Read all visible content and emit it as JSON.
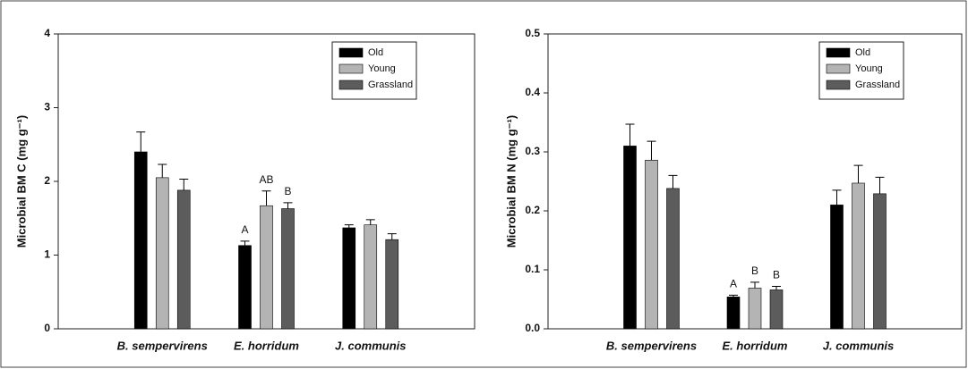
{
  "chart_data": [
    {
      "type": "bar",
      "ylabel": "Microbial BM C (mg g⁻¹)",
      "categories": [
        "B. sempervirens",
        "E. horridum",
        "J. communis"
      ],
      "series": [
        {
          "name": "Old",
          "color": "#000000",
          "values": [
            2.4,
            1.13,
            1.37
          ],
          "errors": [
            0.27,
            0.06,
            0.04
          ],
          "letters": [
            null,
            "A",
            null
          ]
        },
        {
          "name": "Young",
          "color": "#b4b4b4",
          "values": [
            2.05,
            1.67,
            1.41
          ],
          "errors": [
            0.18,
            0.2,
            0.07
          ],
          "letters": [
            null,
            "AB",
            null
          ]
        },
        {
          "name": "Grassland",
          "color": "#5c5c5c",
          "values": [
            1.88,
            1.63,
            1.21
          ],
          "errors": [
            0.15,
            0.08,
            0.08
          ],
          "letters": [
            null,
            "B",
            null
          ]
        }
      ],
      "ylim": [
        0,
        4
      ],
      "yticks": [
        0,
        1,
        2,
        3,
        4
      ],
      "legend": "upper right"
    },
    {
      "type": "bar",
      "ylabel": "Microbial BM N (mg g⁻¹)",
      "categories": [
        "B. sempervirens",
        "E. horridum",
        "J. communis"
      ],
      "series": [
        {
          "name": "Old",
          "color": "#000000",
          "values": [
            0.31,
            0.054,
            0.21
          ],
          "errors": [
            0.037,
            0.003,
            0.025
          ],
          "letters": [
            null,
            "A",
            null
          ]
        },
        {
          "name": "Young",
          "color": "#b4b4b4",
          "values": [
            0.286,
            0.069,
            0.247
          ],
          "errors": [
            0.032,
            0.01,
            0.03
          ],
          "letters": [
            null,
            "B",
            null
          ]
        },
        {
          "name": "Grassland",
          "color": "#5c5c5c",
          "values": [
            0.238,
            0.066,
            0.229
          ],
          "errors": [
            0.022,
            0.006,
            0.028
          ],
          "letters": [
            null,
            "B",
            null
          ]
        }
      ],
      "ylim": [
        0,
        0.5
      ],
      "yticks": [
        {
          "value": 0,
          "label": "0.0"
        },
        0.1,
        0.2,
        0.3,
        0.4,
        0.5
      ],
      "legend": "upper right"
    }
  ]
}
